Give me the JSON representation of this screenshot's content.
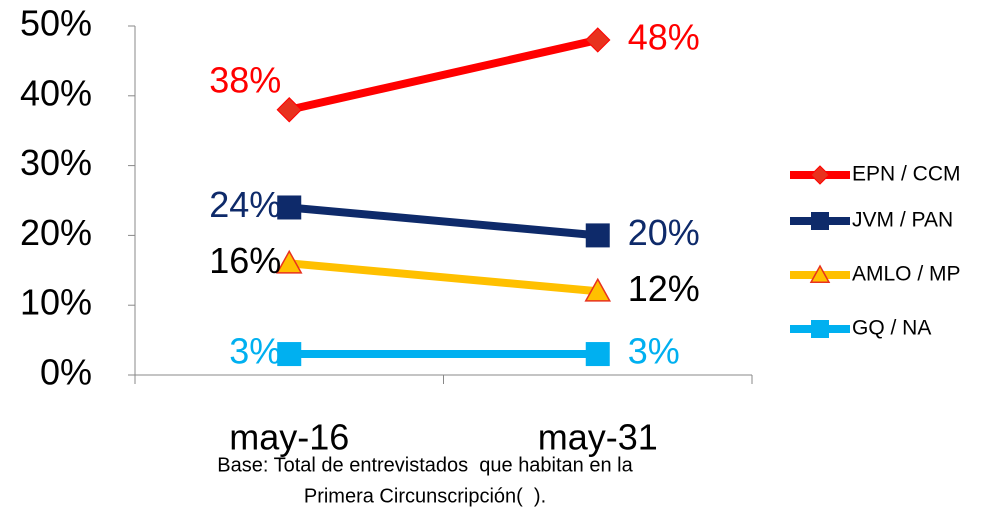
{
  "chart_data": {
    "type": "line",
    "categories": [
      "may-16",
      "may-31"
    ],
    "series": [
      {
        "name": "EPN / CCM",
        "color": "#ff0000",
        "marker": "diamond",
        "marker_color": "#e8321e",
        "label_color": "#ff0000",
        "values": [
          38,
          48
        ],
        "value_labels": [
          "38%",
          "48%"
        ]
      },
      {
        "name": "JVM / PAN",
        "color": "#0e2a6a",
        "marker": "square",
        "marker_color": "#0e2a6a",
        "label_color": "#0e2a6a",
        "values": [
          24,
          20
        ],
        "value_labels": [
          "24%",
          "20%"
        ]
      },
      {
        "name": "AMLO / MP",
        "color": "#ffc000",
        "marker": "triangle",
        "marker_color": "#ffc000",
        "label_color": "#000000",
        "values": [
          16,
          12
        ],
        "value_labels": [
          "16%",
          "12%"
        ]
      },
      {
        "name": "GQ / NA",
        "color": "#00b0f0",
        "marker": "square",
        "marker_color": "#00b0f0",
        "label_color": "#00b0f0",
        "values": [
          3,
          3
        ],
        "value_labels": [
          "3%",
          "3%"
        ]
      }
    ],
    "ylim": [
      0,
      50
    ],
    "yticks": [
      {
        "value": 0,
        "label": "0%"
      },
      {
        "value": 10,
        "label": "10%"
      },
      {
        "value": 20,
        "label": "20%"
      },
      {
        "value": 30,
        "label": "30%"
      },
      {
        "value": 40,
        "label": "40%"
      },
      {
        "value": 50,
        "label": "50%"
      }
    ],
    "legend": "right",
    "note_lines": [
      "Base: Total de entrevistados  que habitan en la",
      "Primera Circunscripción(  )."
    ]
  }
}
